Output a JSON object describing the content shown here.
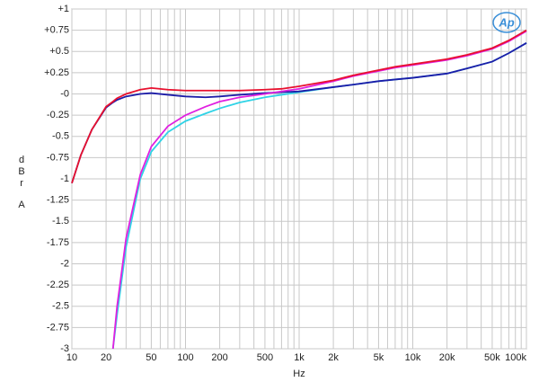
{
  "chart_data": {
    "type": "line",
    "xlabel": "Hz",
    "ylabel": [
      "dBr",
      "A"
    ],
    "logo": "Ap",
    "xscale": "log",
    "grid": true,
    "xlim": [
      10,
      100000
    ],
    "ylim": [
      -3,
      1
    ],
    "xticks": [
      10,
      20,
      50,
      100,
      200,
      500,
      {
        "value": 1000,
        "label": "1k"
      },
      {
        "value": 2000,
        "label": "2k"
      },
      {
        "value": 5000,
        "label": "5k"
      },
      {
        "value": 10000,
        "label": "10k"
      },
      {
        "value": 20000,
        "label": "20k"
      },
      {
        "value": 50000,
        "label": "50k"
      },
      {
        "value": 100000,
        "label": "100k"
      }
    ],
    "xminor": [
      30,
      40,
      60,
      70,
      80,
      90,
      300,
      400,
      600,
      700,
      800,
      900,
      3000,
      4000,
      6000,
      7000,
      8000,
      9000,
      30000,
      40000,
      60000,
      70000,
      80000,
      90000
    ],
    "yticks": [
      {
        "value": 1,
        "label": "+1"
      },
      {
        "value": 0.75,
        "label": "+0.75"
      },
      {
        "value": 0.5,
        "label": "+0.5"
      },
      {
        "value": 0.25,
        "label": "+0.25"
      },
      {
        "value": 0,
        "label": "-0"
      },
      -0.25,
      -0.5,
      -0.75,
      -1,
      -1.25,
      -1.5,
      -1.75,
      -2,
      -2.25,
      -2.5,
      -2.75,
      -3
    ],
    "x": [
      10,
      12,
      15,
      20,
      23,
      25,
      30,
      40,
      50,
      70,
      100,
      150,
      200,
      300,
      500,
      700,
      1000,
      2000,
      3000,
      5000,
      7000,
      10000,
      20000,
      30000,
      50000,
      70000,
      100000
    ],
    "series": [
      {
        "name": "cyan",
        "color": "#2fd3e6",
        "values": [
          null,
          null,
          null,
          null,
          -3.0,
          -2.6,
          -1.8,
          -1.0,
          -0.68,
          -0.45,
          -0.32,
          -0.23,
          -0.17,
          -0.1,
          -0.04,
          -0.01,
          0.02,
          0.08,
          0.11,
          0.15,
          0.17,
          0.19,
          0.24,
          0.3,
          0.38,
          0.48,
          0.6
        ]
      },
      {
        "name": "blue",
        "color": "#1c1ca8",
        "values": [
          -1.05,
          -0.72,
          -0.42,
          -0.16,
          -0.1,
          -0.07,
          -0.03,
          0.0,
          0.01,
          -0.01,
          -0.03,
          -0.04,
          -0.03,
          -0.01,
          0.01,
          0.02,
          0.03,
          0.08,
          0.11,
          0.15,
          0.17,
          0.19,
          0.24,
          0.3,
          0.38,
          0.48,
          0.6
        ]
      },
      {
        "name": "magenta",
        "color": "#e020e0",
        "values": [
          null,
          null,
          null,
          null,
          -3.0,
          -2.5,
          -1.7,
          -0.95,
          -0.62,
          -0.38,
          -0.25,
          -0.15,
          -0.09,
          -0.04,
          0.0,
          0.03,
          0.06,
          0.15,
          0.21,
          0.27,
          0.31,
          0.34,
          0.4,
          0.45,
          0.53,
          0.62,
          0.74
        ]
      },
      {
        "name": "red",
        "color": "#e8102e",
        "values": [
          -1.05,
          -0.72,
          -0.42,
          -0.15,
          -0.09,
          -0.05,
          0.0,
          0.05,
          0.07,
          0.05,
          0.04,
          0.04,
          0.04,
          0.04,
          0.05,
          0.06,
          0.09,
          0.16,
          0.22,
          0.28,
          0.32,
          0.35,
          0.41,
          0.46,
          0.54,
          0.63,
          0.75
        ]
      }
    ]
  }
}
